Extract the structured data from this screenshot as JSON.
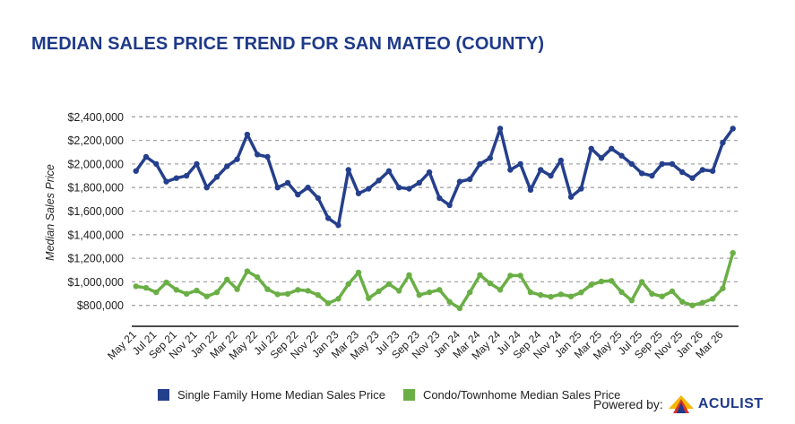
{
  "title": "MEDIAN SALES PRICE TREND FOR SAN MATEO (COUNTY)",
  "legend": [
    {
      "label": "Single Family Home Median Sales Price",
      "color": "#243f8c"
    },
    {
      "label": "Condo/Townhome Median Sales Price",
      "color": "#6aaf45"
    }
  ],
  "footer": {
    "powered_by": "Powered by:",
    "brand": "ACULIST",
    "logo_icon": "house-triangle-logo-icon"
  },
  "chart_data": {
    "type": "line",
    "title": "MEDIAN SALES PRICE TREND FOR SAN MATEO (COUNTY)",
    "xlabel": "",
    "ylabel": "Median Sales Price",
    "ylim": [
      800000,
      2400000
    ],
    "yticks": [
      800000,
      1000000,
      1200000,
      1400000,
      1600000,
      1800000,
      2000000,
      2200000,
      2400000
    ],
    "ytick_labels": [
      "$800,000",
      "$1,000,000",
      "$1,200,000",
      "$1,400,000",
      "$1,600,000",
      "$1,800,000",
      "$2,000,000",
      "$2,200,000",
      "$2,400,000"
    ],
    "grid": "horizontal-dashed",
    "legend_position": "bottom",
    "x": [
      "May 21",
      "Jun 21",
      "Jul 21",
      "Aug 21",
      "Sep 21",
      "Oct 21",
      "Nov 21",
      "Dec 21",
      "Jan 22",
      "Feb 22",
      "Mar 22",
      "Apr 22",
      "May 22",
      "Jun 22",
      "Jul 22",
      "Aug 22",
      "Sep 22",
      "Oct 22",
      "Nov 22",
      "Dec 22",
      "Jan 23",
      "Feb 23",
      "Mar 23",
      "Apr 23",
      "May 23",
      "Jun 23",
      "Jul 23",
      "Aug 23",
      "Sep 23",
      "Oct 23",
      "Nov 23",
      "Dec 23",
      "Jan 24",
      "Feb 24",
      "Mar 24",
      "Apr 24",
      "May 24",
      "Jun 24",
      "Jul 24",
      "Aug 24",
      "Sep 24",
      "Oct 24",
      "Nov 24",
      "Dec 24",
      "Jan 25",
      "Feb 25",
      "Mar 25",
      "Apr 25",
      "May 25",
      "Jun 25",
      "Jul 25",
      "Aug 25",
      "Sep 25",
      "Oct 25",
      "Nov 25",
      "Dec 25",
      "Jan 26",
      "Feb 26",
      "Mar 26",
      "Apr 26"
    ],
    "xtick_labels": [
      "May 21",
      "Jul 21",
      "Sep 21",
      "Nov 21",
      "Jan 22",
      "Mar 22",
      "May 22",
      "Jul 22",
      "Sep 22",
      "Nov 22",
      "Jan 23",
      "Mar 23",
      "May 23",
      "Jul 23",
      "Sep 23",
      "Nov 23",
      "Jan 24",
      "Mar 24",
      "May 24",
      "Jul 24",
      "Sep 24",
      "Nov 24",
      "Jan 25",
      "Mar 25",
      "May 25",
      "Jul 25",
      "Sep 25",
      "Nov 25",
      "Jan 26",
      "Mar 26"
    ],
    "series": [
      {
        "name": "Single Family Home Median Sales Price",
        "color": "#243f8c",
        "values": [
          1940000,
          2060000,
          2000000,
          1850000,
          1880000,
          1900000,
          2000000,
          1800000,
          1890000,
          1980000,
          2040000,
          2250000,
          2080000,
          2060000,
          1800000,
          1840000,
          1740000,
          1800000,
          1710000,
          1540000,
          1480000,
          1950000,
          1750000,
          1790000,
          1860000,
          1940000,
          1800000,
          1790000,
          1840000,
          1930000,
          1710000,
          1650000,
          1850000,
          1870000,
          2000000,
          2050000,
          2300000,
          1950000,
          2000000,
          1780000,
          1950000,
          1900000,
          2030000,
          1720000,
          1790000,
          2130000,
          2050000,
          2130000,
          2070000,
          2000000,
          1920000,
          1900000,
          2000000,
          2000000,
          1930000,
          1880000,
          1950000,
          1940000,
          2180000,
          2300000
        ]
      },
      {
        "name": "Condo/Townhome Median Sales Price",
        "color": "#6aaf45",
        "values": [
          962000,
          949000,
          911000,
          995000,
          932000,
          898000,
          926000,
          876000,
          911000,
          1020000,
          937000,
          1090000,
          1040000,
          937000,
          894000,
          898000,
          932000,
          924000,
          888000,
          818000,
          856000,
          982000,
          1079000,
          861000,
          920000,
          982000,
          924000,
          1058000,
          888000,
          911000,
          932000,
          830000,
          775000,
          911000,
          1058000,
          987000,
          932000,
          1053000,
          1053000,
          911000,
          888000,
          873000,
          894000,
          876000,
          910000,
          975000,
          1003000,
          1008000,
          913000,
          842000,
          1000000,
          898000,
          876000,
          920000,
          830000,
          800000,
          823000,
          856000,
          944000,
          1245000
        ]
      }
    ]
  }
}
